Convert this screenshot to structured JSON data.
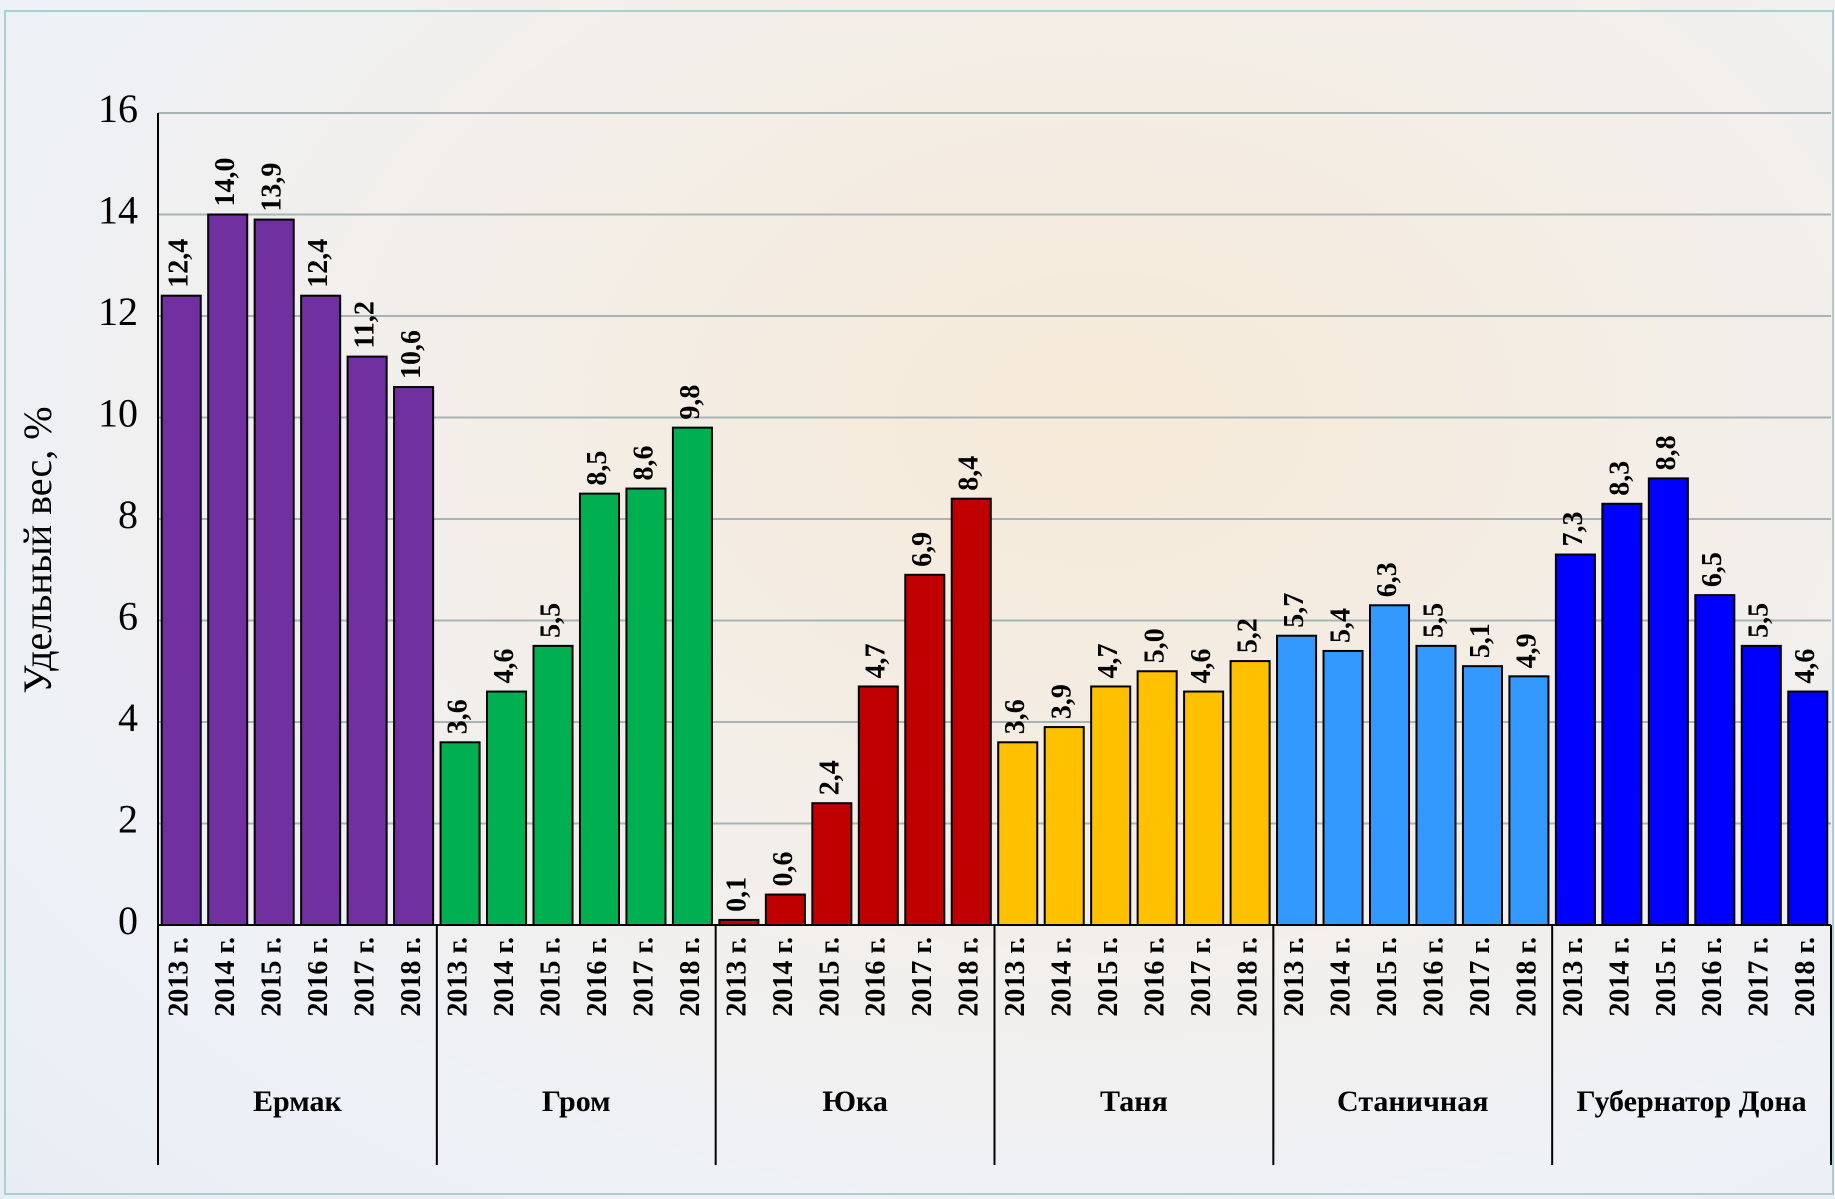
{
  "chart_data": {
    "type": "grouped-bar",
    "y_label": "Удельный вес, %",
    "ylim": [
      0,
      16
    ],
    "yticks": [
      0,
      2,
      4,
      6,
      8,
      10,
      12,
      14,
      16
    ],
    "grid": true,
    "groups": [
      {
        "name": "Ермак",
        "color": "#7030a0",
        "categories": [
          "2013 г.",
          "2014 г.",
          "2015 г.",
          "2016 г.",
          "2017 г.",
          "2018 г."
        ],
        "values": [
          12.4,
          14.0,
          13.9,
          12.4,
          11.2,
          10.6
        ],
        "value_labels": [
          "12,4",
          "14,0",
          "13,9",
          "12,4",
          "11,2",
          "10,6"
        ]
      },
      {
        "name": "Гром",
        "color": "#00b050",
        "categories": [
          "2013 г.",
          "2014 г.",
          "2015 г.",
          "2016 г.",
          "2017 г.",
          "2018 г."
        ],
        "values": [
          3.6,
          4.6,
          5.5,
          8.5,
          8.6,
          9.8
        ],
        "value_labels": [
          "3,6",
          "4,6",
          "5,5",
          "8,5",
          "8,6",
          "9,8"
        ]
      },
      {
        "name": "Юка",
        "color": "#c00000",
        "categories": [
          "2013 г.",
          "2014 г.",
          "2015 г.",
          "2016 г.",
          "2017 г.",
          "2018 г."
        ],
        "values": [
          0.1,
          0.6,
          2.4,
          4.7,
          6.9,
          8.4
        ],
        "value_labels": [
          "0,1",
          "0,6",
          "2,4",
          "4,7",
          "6,9",
          "8,4"
        ]
      },
      {
        "name": "Таня",
        "color": "#ffc000",
        "categories": [
          "2013 г.",
          "2014 г.",
          "2015 г.",
          "2016 г.",
          "2017 г.",
          "2018 г."
        ],
        "values": [
          3.6,
          3.9,
          4.7,
          5.0,
          4.6,
          5.2
        ],
        "value_labels": [
          "3,6",
          "3,9",
          "4,7",
          "5,0",
          "4,6",
          "5,2"
        ]
      },
      {
        "name": "Станичная",
        "color": "#3399ff",
        "categories": [
          "2013 г.",
          "2014 г.",
          "2015 г.",
          "2016 г.",
          "2017 г.",
          "2018 г."
        ],
        "values": [
          5.7,
          5.4,
          6.3,
          5.5,
          5.1,
          4.9
        ],
        "value_labels": [
          "5,7",
          "5,4",
          "6,3",
          "5,5",
          "5,1",
          "4,9"
        ]
      },
      {
        "name": "Губернатор Дона",
        "color": "#0000ff",
        "categories": [
          "2013 г.",
          "2014 г.",
          "2015 г.",
          "2016 г.",
          "2017 г.",
          "2018 г."
        ],
        "values": [
          7.3,
          8.3,
          8.8,
          6.5,
          5.5,
          4.6
        ],
        "value_labels": [
          "7,3",
          "8,3",
          "8,8",
          "6,5",
          "5,5",
          "4,6"
        ]
      }
    ]
  }
}
